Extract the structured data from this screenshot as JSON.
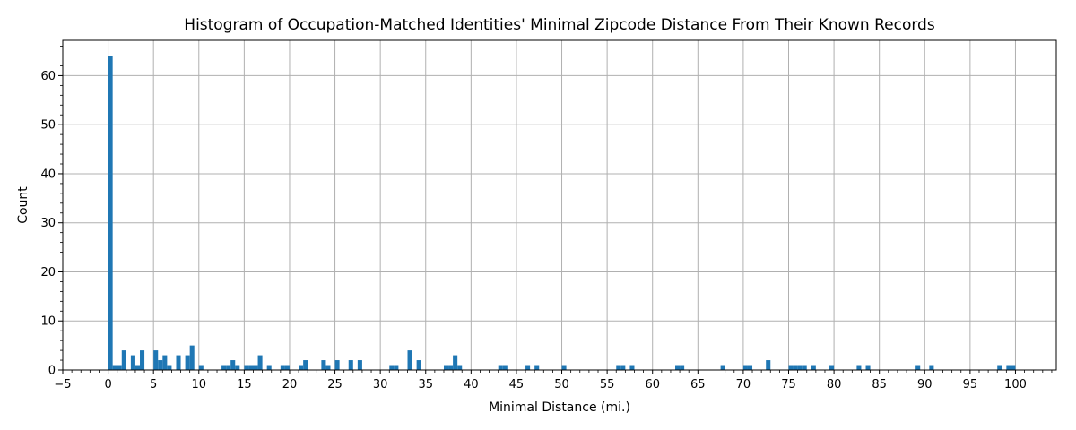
{
  "chart_data": {
    "type": "bar",
    "title": "Histogram of Occupation-Matched Identities' Minimal Zipcode Distance From Their Known Records",
    "xlabel": "Minimal Distance (mi.)",
    "ylabel": "Count",
    "xlim": [
      -5,
      104.5
    ],
    "ylim": [
      0,
      67.2
    ],
    "bin_width": 0.5,
    "x_ticks": [
      -5,
      0,
      5,
      10,
      15,
      20,
      25,
      30,
      35,
      40,
      45,
      50,
      55,
      60,
      65,
      70,
      75,
      80,
      85,
      90,
      95,
      100
    ],
    "x_tick_labels": [
      "−5",
      "0",
      "5",
      "10",
      "15",
      "20",
      "25",
      "30",
      "35",
      "40",
      "45",
      "50",
      "55",
      "60",
      "65",
      "70",
      "75",
      "80",
      "85",
      "90",
      "95",
      "100"
    ],
    "y_ticks": [
      0,
      10,
      20,
      30,
      40,
      50,
      60
    ],
    "y_tick_labels": [
      "0",
      "10",
      "20",
      "30",
      "40",
      "50",
      "60"
    ],
    "grid": true,
    "color": "#1f77b4",
    "bin_starts": [
      0,
      0.5,
      1,
      1.5,
      2.5,
      3,
      3.5,
      5,
      5.5,
      6,
      6.5,
      7.5,
      8.5,
      9,
      10,
      12.5,
      13,
      13.5,
      14,
      15,
      15.5,
      16,
      16.5,
      17.5,
      19,
      19.5,
      21,
      21.5,
      23.5,
      24,
      25,
      26.5,
      27.5,
      31,
      31.5,
      33,
      34,
      37,
      37.5,
      38,
      38.5,
      43,
      43.5,
      46,
      47,
      50,
      56,
      56.5,
      57.5,
      62.5,
      63,
      67.5,
      70,
      70.5,
      72.5,
      75,
      75.5,
      76,
      76.5,
      77.5,
      79.5,
      82.5,
      83.5,
      89,
      90.5,
      98,
      99,
      99.5
    ],
    "values": [
      64,
      1,
      1,
      4,
      3,
      1,
      4,
      4,
      2,
      3,
      1,
      3,
      3,
      5,
      1,
      1,
      1,
      2,
      1,
      1,
      1,
      1,
      3,
      1,
      1,
      1,
      1,
      2,
      2,
      1,
      2,
      2,
      2,
      1,
      1,
      4,
      2,
      1,
      1,
      3,
      1,
      1,
      1,
      1,
      1,
      1,
      1,
      1,
      1,
      1,
      1,
      1,
      1,
      1,
      2,
      1,
      1,
      1,
      1,
      1,
      1,
      1,
      1,
      1,
      1,
      1,
      1,
      1
    ]
  }
}
